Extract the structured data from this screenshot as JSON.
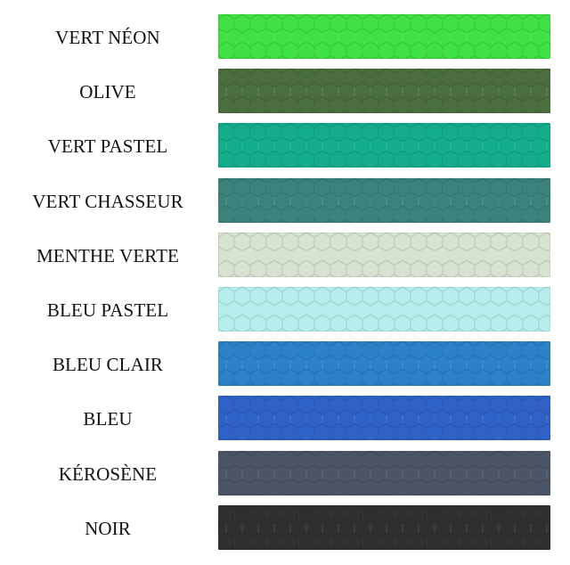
{
  "swatches": [
    {
      "label": "VERT NÉON",
      "color": "#3fe043"
    },
    {
      "label": "OLIVE",
      "color": "#4b6e3e"
    },
    {
      "label": "VERT PASTEL",
      "color": "#13ad8c"
    },
    {
      "label": "VERT CHASSEUR",
      "color": "#3b827d"
    },
    {
      "label": "MENTHE VERTE",
      "color": "#d7e2d0"
    },
    {
      "label": "BLEU PASTEL",
      "color": "#b5eeec"
    },
    {
      "label": "BLEU CLAIR",
      "color": "#2b82c8"
    },
    {
      "label": "BLEU",
      "color": "#2e62c7"
    },
    {
      "label": "KÉROSÈNE",
      "color": "#4b5566"
    },
    {
      "label": "NOIR",
      "color": "#2d302c"
    }
  ]
}
